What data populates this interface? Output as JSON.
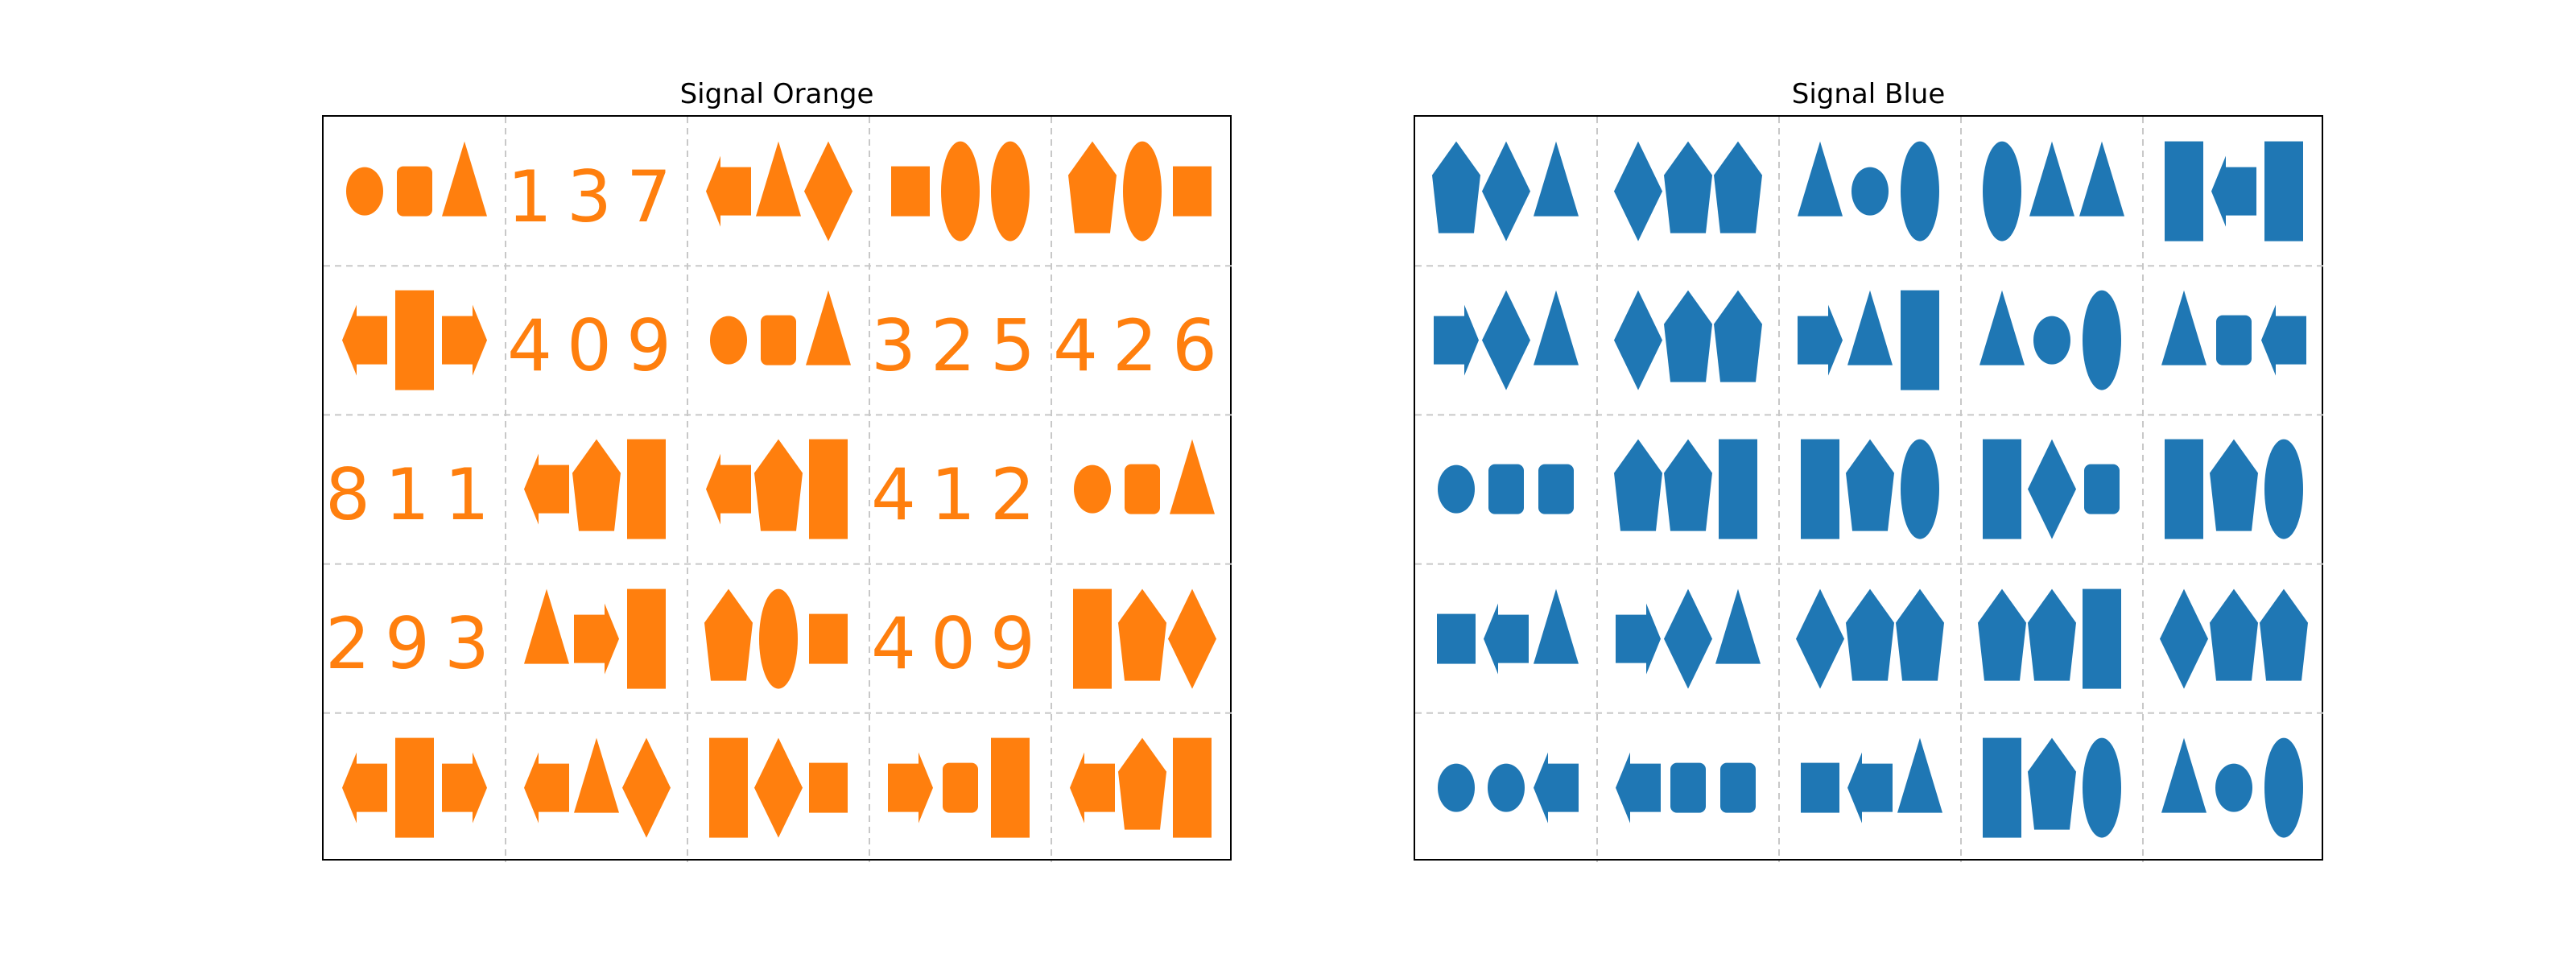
{
  "panels": [
    {
      "title": "Signal Orange",
      "color": "#ff7f0e",
      "cells": [
        {
          "shapes": [
            "ellipse",
            "rounded-rect",
            "triangle"
          ]
        },
        {
          "number": "137"
        },
        {
          "shapes": [
            "arrow-left",
            "triangle",
            "diamond"
          ]
        },
        {
          "shapes": [
            "rect",
            "tall-ellipse",
            "tall-ellipse"
          ]
        },
        {
          "shapes": [
            "pentagon",
            "tall-ellipse",
            "rect"
          ]
        },
        {
          "shapes": [
            "arrow-left",
            "tall-rect",
            "arrow-right"
          ]
        },
        {
          "number": "409"
        },
        {
          "shapes": [
            "ellipse",
            "rounded-rect",
            "triangle"
          ]
        },
        {
          "number": "325"
        },
        {
          "number": "426"
        },
        {
          "number": "811"
        },
        {
          "shapes": [
            "arrow-left",
            "pentagon",
            "tall-rect"
          ]
        },
        {
          "shapes": [
            "arrow-left",
            "pentagon",
            "tall-rect"
          ]
        },
        {
          "number": "412"
        },
        {
          "shapes": [
            "ellipse",
            "rounded-rect",
            "triangle"
          ]
        },
        {
          "number": "293"
        },
        {
          "shapes": [
            "triangle",
            "arrow-right",
            "tall-rect"
          ]
        },
        {
          "shapes": [
            "pentagon",
            "tall-ellipse",
            "rect"
          ]
        },
        {
          "number": "409"
        },
        {
          "shapes": [
            "tall-rect",
            "pentagon",
            "diamond"
          ]
        },
        {
          "shapes": [
            "arrow-left",
            "tall-rect",
            "arrow-right"
          ]
        },
        {
          "shapes": [
            "arrow-left",
            "triangle",
            "diamond"
          ]
        },
        {
          "shapes": [
            "tall-rect",
            "diamond",
            "rect"
          ]
        },
        {
          "shapes": [
            "arrow-right",
            "rounded-rect",
            "tall-rect"
          ]
        },
        {
          "shapes": [
            "arrow-left",
            "pentagon",
            "tall-rect"
          ]
        }
      ]
    },
    {
      "title": "Signal Blue",
      "color": "#1f77b4",
      "cells": [
        {
          "shapes": [
            "pentagon",
            "diamond",
            "triangle"
          ]
        },
        {
          "shapes": [
            "diamond",
            "pentagon",
            "pentagon"
          ]
        },
        {
          "shapes": [
            "triangle",
            "ellipse",
            "tall-ellipse"
          ]
        },
        {
          "shapes": [
            "tall-ellipse",
            "triangle",
            "triangle"
          ]
        },
        {
          "shapes": [
            "tall-rect",
            "arrow-left",
            "tall-rect"
          ]
        },
        {
          "shapes": [
            "arrow-right",
            "diamond",
            "triangle"
          ]
        },
        {
          "shapes": [
            "diamond",
            "pentagon",
            "pentagon"
          ]
        },
        {
          "shapes": [
            "arrow-right",
            "triangle",
            "tall-rect"
          ]
        },
        {
          "shapes": [
            "triangle",
            "ellipse",
            "tall-ellipse"
          ]
        },
        {
          "shapes": [
            "triangle",
            "rounded-rect",
            "arrow-left"
          ]
        },
        {
          "shapes": [
            "ellipse",
            "rounded-rect",
            "rounded-rect"
          ]
        },
        {
          "shapes": [
            "pentagon",
            "pentagon",
            "tall-rect"
          ]
        },
        {
          "shapes": [
            "tall-rect",
            "pentagon",
            "tall-ellipse"
          ]
        },
        {
          "shapes": [
            "tall-rect",
            "diamond",
            "rounded-rect"
          ]
        },
        {
          "shapes": [
            "tall-rect",
            "pentagon",
            "tall-ellipse"
          ]
        },
        {
          "shapes": [
            "rect",
            "arrow-left",
            "triangle"
          ]
        },
        {
          "shapes": [
            "arrow-right",
            "diamond",
            "triangle"
          ]
        },
        {
          "shapes": [
            "diamond",
            "pentagon",
            "pentagon"
          ]
        },
        {
          "shapes": [
            "pentagon",
            "pentagon",
            "tall-rect"
          ]
        },
        {
          "shapes": [
            "diamond",
            "pentagon",
            "pentagon"
          ]
        },
        {
          "shapes": [
            "ellipse",
            "ellipse",
            "arrow-left"
          ]
        },
        {
          "shapes": [
            "arrow-left",
            "rounded-rect",
            "rounded-rect"
          ]
        },
        {
          "shapes": [
            "rect",
            "arrow-left",
            "triangle"
          ]
        },
        {
          "shapes": [
            "tall-rect",
            "pentagon",
            "tall-ellipse"
          ]
        },
        {
          "shapes": [
            "triangle",
            "ellipse",
            "tall-ellipse"
          ]
        }
      ]
    }
  ]
}
